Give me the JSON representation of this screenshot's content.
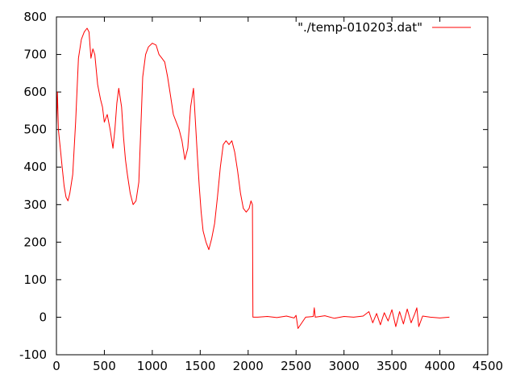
{
  "chart_data": {
    "type": "line",
    "title": "",
    "xlabel": "",
    "ylabel": "",
    "xlim": [
      0,
      4500
    ],
    "ylim": [
      -100,
      800
    ],
    "xticks": [
      0,
      500,
      1000,
      1500,
      2000,
      2500,
      3000,
      3500,
      4000,
      4500
    ],
    "yticks": [
      -100,
      0,
      100,
      200,
      300,
      400,
      500,
      600,
      700,
      800
    ],
    "grid": false,
    "legend_position": "top-right",
    "series_color": "#ff0000",
    "series": [
      {
        "name": "\"./temp-010203.dat\"",
        "color": "#ff0000",
        "x": [
          0,
          10,
          20,
          40,
          60,
          80,
          100,
          120,
          140,
          170,
          200,
          230,
          260,
          290,
          320,
          340,
          360,
          380,
          400,
          430,
          460,
          480,
          500,
          530,
          560,
          590,
          610,
          630,
          650,
          680,
          700,
          720,
          740,
          770,
          800,
          830,
          860,
          880,
          900,
          930,
          960,
          1000,
          1040,
          1070,
          1100,
          1130,
          1160,
          1190,
          1220,
          1250,
          1280,
          1310,
          1340,
          1370,
          1400,
          1430,
          1450,
          1470,
          1490,
          1510,
          1530,
          1560,
          1590,
          1620,
          1650,
          1680,
          1710,
          1740,
          1770,
          1800,
          1830,
          1860,
          1890,
          1920,
          1950,
          1980,
          2010,
          2030,
          2045,
          2050,
          2100,
          2200,
          2300,
          2400,
          2480,
          2500,
          2520,
          2600,
          2680,
          2690,
          2700,
          2800,
          2900,
          3000,
          3100,
          3200,
          3260,
          3300,
          3340,
          3380,
          3420,
          3460,
          3500,
          3540,
          3580,
          3620,
          3660,
          3700,
          3740,
          3760,
          3780,
          3820,
          3900,
          4000,
          4100
        ],
        "y": [
          510,
          600,
          500,
          450,
          400,
          350,
          320,
          310,
          330,
          380,
          520,
          690,
          740,
          760,
          770,
          760,
          690,
          715,
          700,
          620,
          580,
          560,
          520,
          540,
          500,
          450,
          500,
          570,
          610,
          560,
          480,
          420,
          380,
          330,
          300,
          310,
          360,
          500,
          640,
          700,
          720,
          730,
          725,
          700,
          690,
          680,
          640,
          590,
          540,
          520,
          500,
          470,
          420,
          450,
          560,
          610,
          520,
          430,
          350,
          280,
          230,
          200,
          180,
          210,
          250,
          320,
          400,
          460,
          470,
          460,
          470,
          440,
          390,
          330,
          290,
          280,
          290,
          310,
          300,
          0,
          0,
          2,
          -1,
          3,
          -2,
          5,
          -30,
          0,
          2,
          25,
          0,
          4,
          -3,
          2,
          0,
          3,
          15,
          -15,
          10,
          -20,
          12,
          -10,
          20,
          -25,
          15,
          -18,
          22,
          -15,
          10,
          25,
          -25,
          3,
          0,
          -2,
          0
        ]
      }
    ]
  }
}
